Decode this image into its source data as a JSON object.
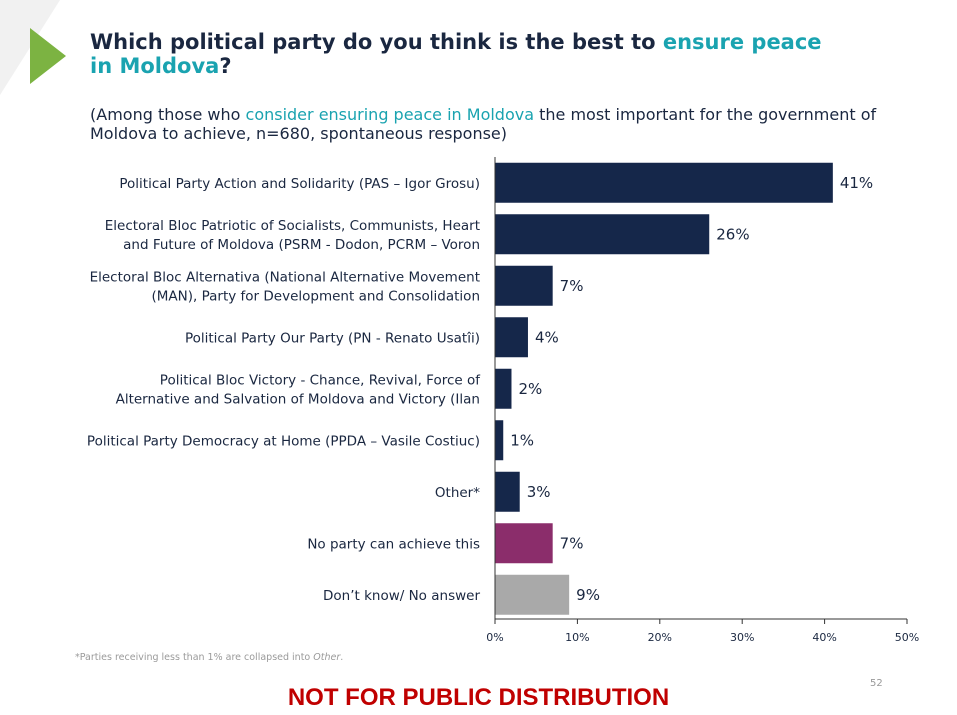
{
  "title": {
    "part1": "Which political party do you think is the best to ",
    "highlight": "ensure peace in Moldova",
    "part2": "?"
  },
  "subtitle": {
    "part1": "(Among those who ",
    "highlight": "consider ensuring peace in Moldova",
    "part2": " the most important for the government of Moldova to achieve, n=680, spontaneous response)"
  },
  "footnote": {
    "part1": "*Parties receiving less than 1% are collapsed into ",
    "italic": "Other",
    "part2": "."
  },
  "watermark": "NOT FOR PUBLIC DISTRIBUTION",
  "page_number": "52",
  "colors": {
    "dark_navy": "#15274a",
    "purple": "#8b2d6b",
    "gray": "#a9a9a9",
    "accent_teal": "#1aa3b0",
    "arrow_green": "#7cb342",
    "watermark_red": "#c00000"
  },
  "chart_data": {
    "type": "bar",
    "orientation": "horizontal",
    "categories": [
      [
        "Political Party Action and Solidarity (PAS – Igor Grosu)"
      ],
      [
        "Electoral Bloc Patriotic of Socialists, Communists, Heart",
        "and Future of Moldova (PSRM - Dodon, PCRM – Voron"
      ],
      [
        "Electoral Bloc Alternativa (National Alternative Movement",
        "(MAN), Party for Development and Consolidation"
      ],
      [
        "Political Party Our Party (PN - Renato Usatîi)"
      ],
      [
        "Political Bloc Victory - Chance, Revival, Force of",
        "Alternative and Salvation of Moldova and Victory (Ilan"
      ],
      [
        "Political Party Democracy at Home (PPDA – Vasile Costiuc)"
      ],
      [
        "Other*"
      ],
      [
        "No party can achieve this"
      ],
      [
        "Don’t know/ No answer"
      ]
    ],
    "values": [
      41,
      26,
      7,
      4,
      2,
      1,
      3,
      7,
      9
    ],
    "value_labels": [
      "41%",
      "26%",
      "7%",
      "4%",
      "2%",
      "1%",
      "3%",
      "7%",
      "9%"
    ],
    "bar_colors": [
      "#15274a",
      "#15274a",
      "#15274a",
      "#15274a",
      "#15274a",
      "#15274a",
      "#15274a",
      "#8b2d6b",
      "#a9a9a9"
    ],
    "xlim": [
      0,
      50
    ],
    "xticks": [
      0,
      10,
      20,
      30,
      40,
      50
    ],
    "xtick_labels": [
      "0%",
      "10%",
      "20%",
      "30%",
      "40%",
      "50%"
    ],
    "grid": false
  }
}
